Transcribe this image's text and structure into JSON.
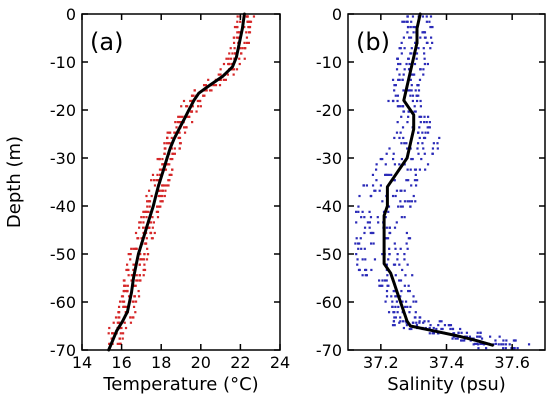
{
  "figure": {
    "ylabel": "Depth (m)"
  },
  "chart_data": [
    {
      "type": "scatter",
      "panel_label": "(a)",
      "xlabel": "Temperature (°C)",
      "ylabel": "Depth (m)",
      "xlim": [
        14,
        24
      ],
      "ylim": [
        -70,
        0
      ],
      "xticks": [
        14,
        16,
        18,
        20,
        22,
        24
      ],
      "yticks": [
        0,
        -10,
        -20,
        -30,
        -40,
        -50,
        -60,
        -70
      ],
      "scatter_color": "#d62728",
      "line_color": "#000000",
      "grid": false,
      "mean_profile": {
        "depth": [
          0,
          -3,
          -6,
          -9,
          -11,
          -13,
          -15,
          -16.5,
          -18,
          -20,
          -22,
          -24,
          -26,
          -28,
          -30,
          -32,
          -34,
          -36,
          -38,
          -40,
          -42,
          -44,
          -46,
          -48,
          -50,
          -52,
          -55,
          -58,
          -60,
          -62,
          -64,
          -66,
          -68,
          -70
        ],
        "temperature": [
          22.2,
          22.1,
          21.95,
          21.8,
          21.6,
          21.1,
          20.4,
          19.9,
          19.65,
          19.4,
          19.15,
          18.9,
          18.65,
          18.45,
          18.3,
          18.15,
          18.0,
          17.85,
          17.72,
          17.6,
          17.45,
          17.3,
          17.15,
          17.0,
          16.85,
          16.75,
          16.6,
          16.5,
          16.4,
          16.3,
          16.05,
          15.75,
          15.55,
          15.35
        ]
      },
      "scatter_spread": 0.5
    },
    {
      "type": "scatter",
      "panel_label": "(b)",
      "xlabel": "Salinity (psu)",
      "ylabel": "",
      "xlim": [
        37.1,
        37.7
      ],
      "ylim": [
        -70,
        0
      ],
      "xticks": [
        37.2,
        37.4,
        37.6
      ],
      "yticks": [
        0,
        -10,
        -20,
        -30,
        -40,
        -50,
        -60,
        -70
      ],
      "scatter_color": "#2b2bb8",
      "line_color": "#000000",
      "grid": false,
      "mean_profile": {
        "depth": [
          0,
          -3,
          -6,
          -9,
          -12,
          -15,
          -18,
          -21,
          -24,
          -27,
          -30,
          -32,
          -34,
          -36,
          -38,
          -40,
          -42,
          -44,
          -46,
          -48,
          -50,
          -52,
          -54,
          -56,
          -58,
          -60,
          -62,
          -64,
          -65,
          -66,
          -67,
          -68,
          -69
        ],
        "salinity": [
          37.32,
          37.31,
          37.31,
          37.3,
          37.29,
          37.28,
          37.27,
          37.3,
          37.3,
          37.29,
          37.28,
          37.26,
          37.24,
          37.22,
          37.22,
          37.22,
          37.21,
          37.21,
          37.21,
          37.21,
          37.21,
          37.21,
          37.23,
          37.24,
          37.25,
          37.26,
          37.27,
          37.28,
          37.29,
          37.36,
          37.43,
          37.49,
          37.54
        ]
      },
      "scatter_spread": 0.05
    }
  ]
}
